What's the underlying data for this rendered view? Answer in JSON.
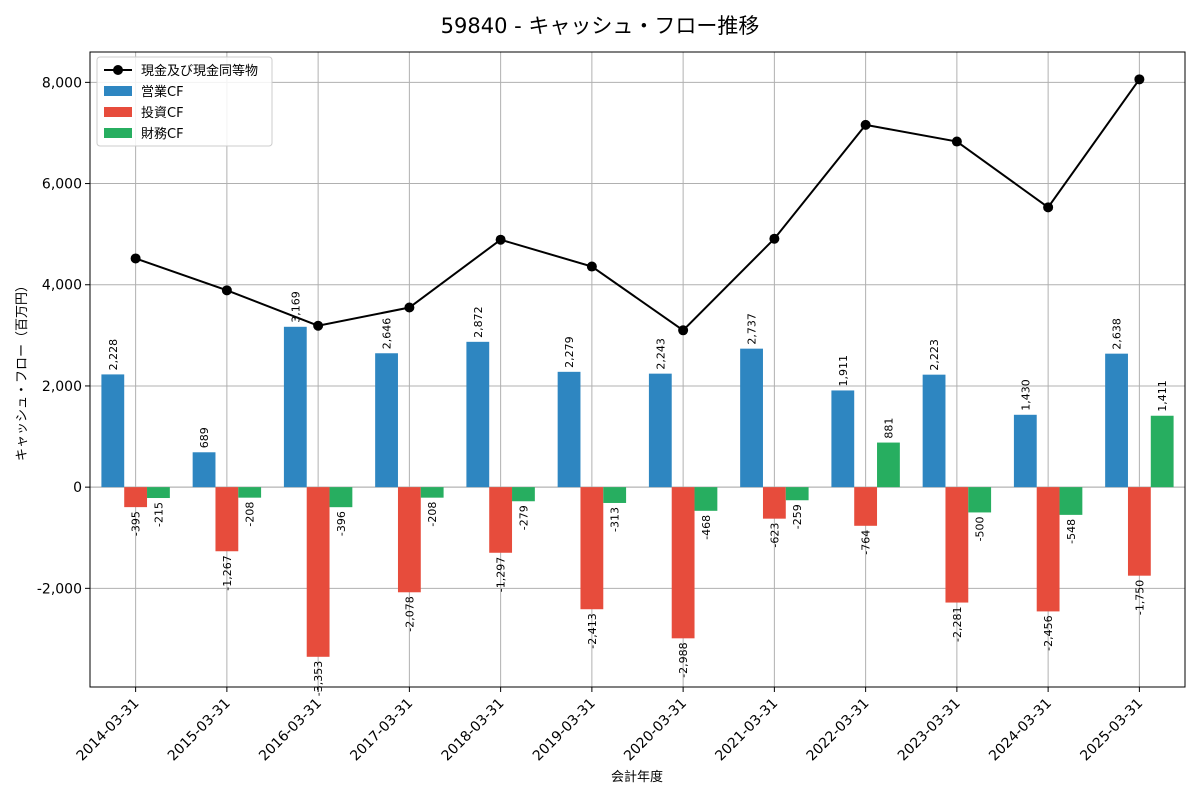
{
  "chart_data": {
    "type": "bar",
    "title": "59840 - キャッシュ・フロー推移",
    "xlabel": "会計年度",
    "ylabel": "キャッシュ・フロー（百万円）",
    "ylim": [
      -3950,
      8600
    ],
    "yticks": [
      -2000,
      0,
      2000,
      4000,
      6000,
      8000
    ],
    "ytick_labels": [
      "-2,000",
      "0",
      "2,000",
      "4,000",
      "6,000",
      "8,000"
    ],
    "grid": true,
    "legend_position": "top-left",
    "categories": [
      "2014-03-31",
      "2015-03-31",
      "2016-03-31",
      "2017-03-31",
      "2018-03-31",
      "2019-03-31",
      "2020-03-31",
      "2021-03-31",
      "2022-03-31",
      "2023-03-31",
      "2024-03-31",
      "2025-03-31"
    ],
    "line_series": {
      "name": "現金及び現金同等物",
      "color": "#000000",
      "values": [
        4520,
        3890,
        3190,
        3550,
        4890,
        4360,
        3100,
        4910,
        7160,
        6830,
        5530,
        8060
      ]
    },
    "series": [
      {
        "name": "営業CF",
        "color": "#2e86c1",
        "values": [
          2228,
          689,
          3169,
          2646,
          2872,
          2279,
          2243,
          2737,
          1911,
          2223,
          1430,
          2638
        ],
        "labels": [
          "2,228",
          "689",
          "3,169",
          "2,646",
          "2,872",
          "2,279",
          "2,243",
          "2,737",
          "1,911",
          "2,223",
          "1,430",
          "2,638"
        ]
      },
      {
        "name": "投資CF",
        "color": "#e74c3c",
        "values": [
          -395,
          -1267,
          -3353,
          -2078,
          -1297,
          -2413,
          -2988,
          -623,
          -764,
          -2281,
          -2456,
          -1750
        ],
        "labels": [
          "-395",
          "-1,267",
          "-3,353",
          "-2,078",
          "-1,297",
          "-2,413",
          "-2,988",
          "-623",
          "-764",
          "-2,281",
          "-2,456",
          "-1,750"
        ]
      },
      {
        "name": "財務CF",
        "color": "#27ae60",
        "values": [
          -215,
          -208,
          -396,
          -208,
          -279,
          -313,
          -468,
          -259,
          881,
          -500,
          -548,
          1411
        ],
        "labels": [
          "-215",
          "-208",
          "-396",
          "-208",
          "-279",
          "-313",
          "-468",
          "-259",
          "881",
          "-500",
          "-548",
          "1,411"
        ]
      }
    ]
  }
}
